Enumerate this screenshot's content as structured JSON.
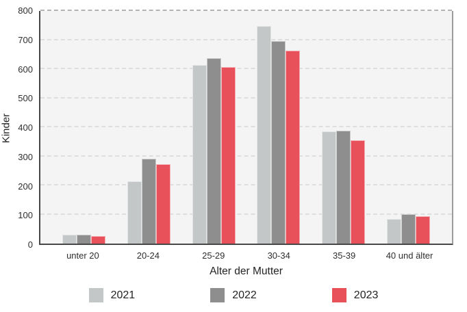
{
  "chart_data": {
    "type": "bar",
    "title": "",
    "categories": [
      "unter 20",
      "20-24",
      "25-29",
      "30-34",
      "35-39",
      "40 und älter"
    ],
    "series": [
      {
        "name": "2021",
        "color": "#c3c7c8",
        "values": [
          30,
          213,
          611,
          745,
          383,
          85
        ]
      },
      {
        "name": "2022",
        "color": "#8e8e8e",
        "values": [
          30,
          289,
          635,
          693,
          386,
          100
        ]
      },
      {
        "name": "2023",
        "color": "#e9515a",
        "values": [
          26,
          272,
          603,
          660,
          353,
          93
        ]
      }
    ],
    "xlabel": "Alter der Mutter",
    "ylabel": "Kinder",
    "ylim": [
      0,
      800
    ],
    "ytick_step": 100,
    "yticks": [
      "0",
      "100",
      "200",
      "300",
      "400",
      "500",
      "600",
      "700",
      "800"
    ],
    "grid": "horizontal-dashed",
    "legend_position": "bottom",
    "plot_background": "#f4f4f4",
    "gridline_color": "#dedede",
    "axis_color": "#474747"
  }
}
